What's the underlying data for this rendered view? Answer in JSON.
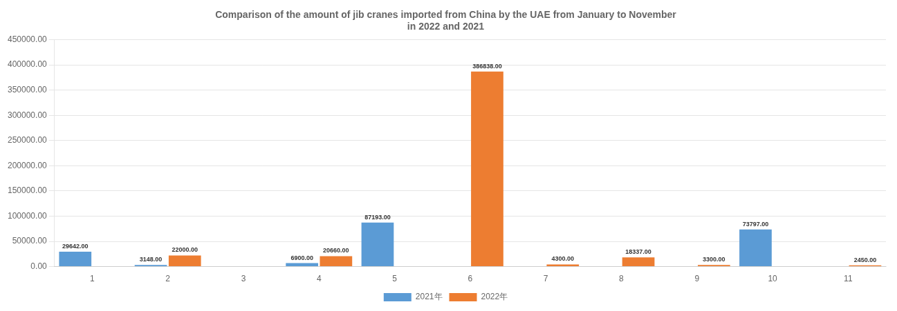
{
  "chart_data": {
    "type": "bar",
    "title": "Comparison of the amount of jib cranes imported from China by the UAE from January to November\nin 2022 and 2021",
    "categories": [
      "1",
      "2",
      "3",
      "4",
      "5",
      "6",
      "7",
      "8",
      "9",
      "10",
      "11"
    ],
    "series": [
      {
        "name": "2021年",
        "color": "#5B9BD5",
        "values": [
          29642.0,
          3148.0,
          0,
          6900.0,
          87193.0,
          0,
          0,
          0,
          0,
          73797.0,
          0
        ],
        "value_labels": [
          "29642.00",
          "3148.00",
          null,
          "6900.00",
          "87193.00",
          null,
          null,
          null,
          null,
          "73797.00",
          null
        ]
      },
      {
        "name": "2022年",
        "color": "#ED7D31",
        "values": [
          0,
          22000.0,
          0,
          20660.0,
          0,
          386838.0,
          4300.0,
          18337.0,
          3300.0,
          0,
          2450.0
        ],
        "value_labels": [
          null,
          "22000.00",
          null,
          "20660.00",
          null,
          "386838.00",
          "4300.00",
          "18337.00",
          "3300.00",
          null,
          "2450.00"
        ]
      }
    ],
    "ylim": [
      0,
      450000
    ],
    "yticks": [
      {
        "value": 0,
        "label": "0.00"
      },
      {
        "value": 50000,
        "label": "50000.00"
      },
      {
        "value": 100000,
        "label": "100000.00"
      },
      {
        "value": 150000,
        "label": "150000.00"
      },
      {
        "value": 200000,
        "label": "200000.00"
      },
      {
        "value": 250000,
        "label": "250000.00"
      },
      {
        "value": 300000,
        "label": "300000.00"
      },
      {
        "value": 350000,
        "label": "350000.00"
      },
      {
        "value": 400000,
        "label": "400000.00"
      },
      {
        "value": 450000,
        "label": "450000.00"
      }
    ],
    "grid": true,
    "legend": "bottom",
    "data_labels": true
  }
}
